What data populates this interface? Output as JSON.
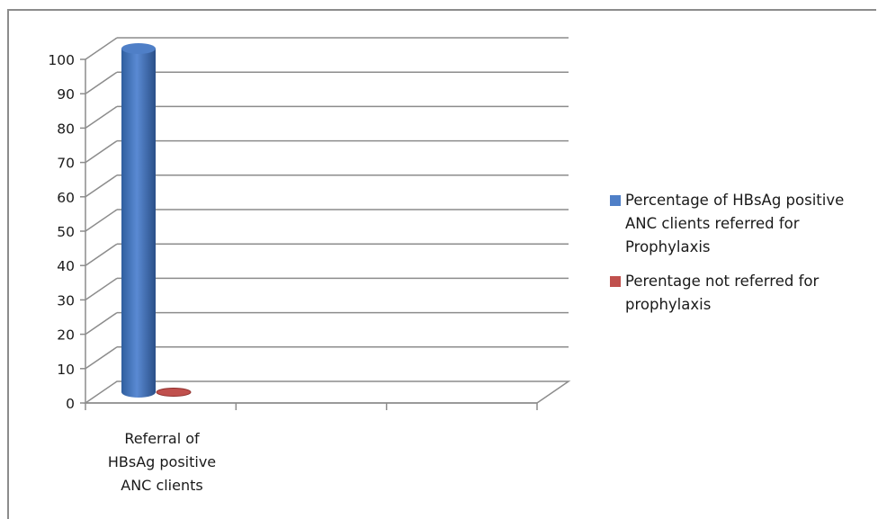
{
  "chart_data": {
    "type": "bar",
    "style": "3d-clustered-column",
    "categories": [
      "Referral of HBsAg positive ANC clients"
    ],
    "series": [
      {
        "name": "Percentage of HBsAg positive ANC clients referred for Prophylaxis",
        "values": [
          100
        ],
        "color": "#4f7fc7"
      },
      {
        "name": "Perentage not referred for prophylaxis",
        "values": [
          0
        ],
        "color": "#c0504d"
      }
    ],
    "ylim": [
      0,
      100
    ],
    "yticks": [
      0,
      10,
      20,
      30,
      40,
      50,
      60,
      70,
      80,
      90,
      100
    ],
    "grid": true,
    "legend_position": "right"
  },
  "category_lines": [
    "Referral of",
    "HBsAg positive",
    "ANC clients"
  ],
  "legend_lines": [
    [
      "Percentage of HBsAg positive",
      "ANC clients referred for",
      "Prophylaxis"
    ],
    [
      "Perentage not referred for",
      "prophylaxis"
    ]
  ]
}
